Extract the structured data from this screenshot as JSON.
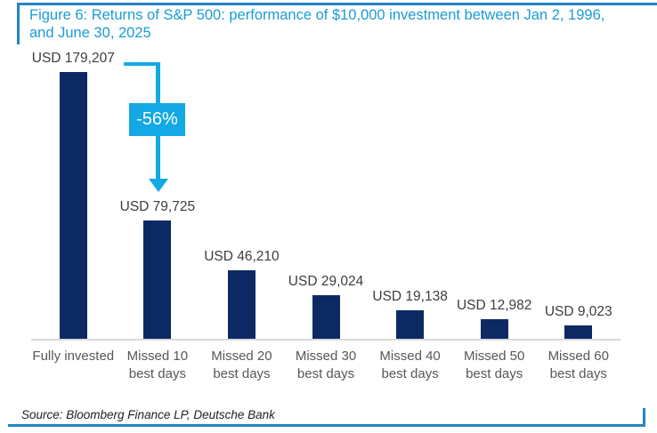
{
  "figure": {
    "title_line1": "Figure 6: Returns of S&P 500: performance of $10,000 investment between Jan 2, 1996,",
    "title_line2": "and June 30, 2025",
    "source": "Source: Bloomberg Finance LP, Deutsche Bank"
  },
  "annotation": {
    "label": "-56%"
  },
  "colors": {
    "bar_navy": "#0c2963",
    "accent_cyan": "#12a9e4",
    "title_blue": "#1b9bd6",
    "frame_blue": "#2484c5",
    "axis_line_gray": "#d9d9d9",
    "value_label_gray": "#3d3d3d",
    "tick_label_gray": "#575757"
  },
  "chart_data": {
    "type": "bar",
    "title": "Figure 6: Returns of S&P 500: performance of $10,000 investment between Jan 2, 1996, and June 30, 2025",
    "categories": [
      "Fully invested",
      "Missed 10 best days",
      "Missed 20 best days",
      "Missed 30 best days",
      "Missed 40 best days",
      "Missed 50 best days",
      "Missed 60 best days"
    ],
    "values": [
      179207,
      79725,
      46210,
      29024,
      19138,
      12982,
      9023
    ],
    "bar_labels": [
      "USD 179,207",
      "USD 79,725",
      "USD 46,210",
      "USD 29,024",
      "USD 19,138",
      "USD 12,982",
      "USD 9,023"
    ],
    "tick_lines": [
      [
        "Fully invested"
      ],
      [
        "Missed 10",
        "best days"
      ],
      [
        "Missed 20",
        "best days"
      ],
      [
        "Missed 30",
        "best days"
      ],
      [
        "Missed 40",
        "best days"
      ],
      [
        "Missed 50",
        "best days"
      ],
      [
        "Missed 60",
        "best days"
      ]
    ],
    "xlabel": "",
    "ylabel": "",
    "ylim": [
      0,
      185000
    ],
    "grid": false,
    "legend": false,
    "annotation": {
      "text": "-56%",
      "from_category": "Fully invested",
      "to_category": "Missed 10 best days"
    },
    "source": "Source: Bloomberg Finance LP, Deutsche Bank"
  }
}
